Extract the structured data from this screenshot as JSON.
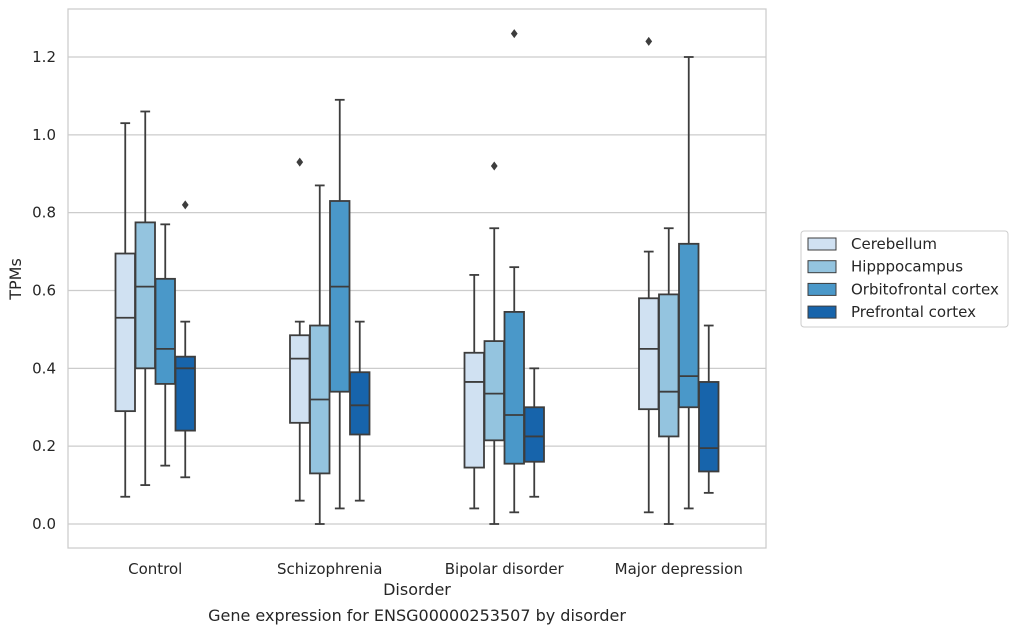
{
  "caption": "Gene expression for ENSG00000253507 by disorder",
  "chart_data": {
    "type": "box",
    "xlabel": "Disorder",
    "ylabel": "TPMs",
    "ylim": [
      -0.06,
      1.32
    ],
    "yticks": [
      0.0,
      0.2,
      0.4,
      0.6,
      0.8,
      1.0,
      1.2
    ],
    "ytick_labels": [
      "0.0",
      "0.2",
      "0.4",
      "0.6",
      "0.8",
      "1.0",
      "1.2"
    ],
    "grid": true,
    "legend_position": "right",
    "categories": [
      "Control",
      "Schizophrenia",
      "Bipolar disorder",
      "Major depression"
    ],
    "colors": [
      "#d0e1f2",
      "#94c4df",
      "#4a98c9",
      "#1764ab"
    ],
    "series": [
      {
        "name": "Cerebellum",
        "boxes": [
          {
            "whislo": 0.07,
            "q1": 0.29,
            "med": 0.53,
            "q3": 0.695,
            "whishi": 1.03,
            "fliers": []
          },
          {
            "whislo": 0.06,
            "q1": 0.26,
            "med": 0.425,
            "q3": 0.485,
            "whishi": 0.52,
            "fliers": [
              0.93
            ]
          },
          {
            "whislo": 0.04,
            "q1": 0.145,
            "med": 0.365,
            "q3": 0.44,
            "whishi": 0.64,
            "fliers": []
          },
          {
            "whislo": 0.03,
            "q1": 0.295,
            "med": 0.45,
            "q3": 0.58,
            "whishi": 0.7,
            "fliers": [
              1.24
            ]
          }
        ]
      },
      {
        "name": "Hipppocampus",
        "boxes": [
          {
            "whislo": 0.1,
            "q1": 0.4,
            "med": 0.61,
            "q3": 0.775,
            "whishi": 1.06,
            "fliers": []
          },
          {
            "whislo": 0.0,
            "q1": 0.13,
            "med": 0.32,
            "q3": 0.51,
            "whishi": 0.87,
            "fliers": []
          },
          {
            "whislo": 0.0,
            "q1": 0.215,
            "med": 0.335,
            "q3": 0.47,
            "whishi": 0.76,
            "fliers": [
              0.92
            ]
          },
          {
            "whislo": 0.0,
            "q1": 0.225,
            "med": 0.34,
            "q3": 0.59,
            "whishi": 0.76,
            "fliers": []
          }
        ]
      },
      {
        "name": "Orbitofrontal cortex",
        "boxes": [
          {
            "whislo": 0.15,
            "q1": 0.36,
            "med": 0.45,
            "q3": 0.63,
            "whishi": 0.77,
            "fliers": []
          },
          {
            "whislo": 0.04,
            "q1": 0.34,
            "med": 0.61,
            "q3": 0.83,
            "whishi": 1.09,
            "fliers": []
          },
          {
            "whislo": 0.03,
            "q1": 0.155,
            "med": 0.28,
            "q3": 0.545,
            "whishi": 0.66,
            "fliers": [
              1.26
            ]
          },
          {
            "whislo": 0.04,
            "q1": 0.3,
            "med": 0.38,
            "q3": 0.72,
            "whishi": 1.2,
            "fliers": []
          }
        ]
      },
      {
        "name": "Prefrontal cortex",
        "boxes": [
          {
            "whislo": 0.12,
            "q1": 0.24,
            "med": 0.4,
            "q3": 0.43,
            "whishi": 0.52,
            "fliers": [
              0.82
            ]
          },
          {
            "whislo": 0.06,
            "q1": 0.23,
            "med": 0.305,
            "q3": 0.39,
            "whishi": 0.52,
            "fliers": []
          },
          {
            "whislo": 0.07,
            "q1": 0.16,
            "med": 0.225,
            "q3": 0.3,
            "whishi": 0.4,
            "fliers": []
          },
          {
            "whislo": 0.08,
            "q1": 0.135,
            "med": 0.195,
            "q3": 0.365,
            "whishi": 0.51,
            "fliers": []
          }
        ]
      }
    ]
  }
}
